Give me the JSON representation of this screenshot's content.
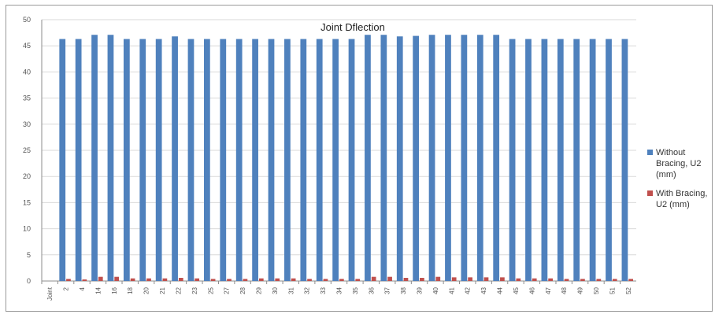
{
  "chart_data": {
    "type": "bar",
    "title": "Joint Dflection",
    "xlabel": "",
    "ylabel": "",
    "ylim": [
      0,
      50
    ],
    "yticks": [
      "0",
      "5",
      "10",
      "15",
      "20",
      "25",
      "30",
      "35",
      "40",
      "45",
      "50"
    ],
    "grid": true,
    "legend_position": "right",
    "categories": [
      "Joint",
      "2",
      "4",
      "14",
      "16",
      "18",
      "20",
      "21",
      "22",
      "23",
      "25",
      "27",
      "28",
      "29",
      "30",
      "31",
      "32",
      "33",
      "34",
      "35",
      "36",
      "37",
      "38",
      "39",
      "40",
      "41",
      "42",
      "43",
      "44",
      "45",
      "46",
      "47",
      "48",
      "49",
      "50",
      "51",
      "52"
    ],
    "series": [
      {
        "name": "Without Bracing, U2 (mm)",
        "color": "#4f81bd",
        "values": [
          0,
          46.3,
          46.3,
          47.1,
          47.1,
          46.3,
          46.3,
          46.3,
          46.8,
          46.3,
          46.3,
          46.3,
          46.3,
          46.3,
          46.3,
          46.3,
          46.3,
          46.3,
          46.3,
          46.3,
          47.1,
          47.1,
          46.8,
          46.9,
          47.1,
          47.1,
          47.1,
          47.1,
          47.1,
          46.3,
          46.3,
          46.3,
          46.3,
          46.3,
          46.3,
          46.3,
          46.3
        ]
      },
      {
        "name": "With Bracing, U2 (mm)",
        "color": "#c0504d",
        "values": [
          0,
          0.4,
          0.3,
          0.8,
          0.8,
          0.5,
          0.5,
          0.5,
          0.6,
          0.5,
          0.4,
          0.4,
          0.4,
          0.5,
          0.5,
          0.5,
          0.4,
          0.4,
          0.4,
          0.4,
          0.8,
          0.8,
          0.6,
          0.6,
          0.8,
          0.7,
          0.7,
          0.7,
          0.7,
          0.5,
          0.5,
          0.5,
          0.4,
          0.4,
          0.4,
          0.4,
          0.4
        ]
      }
    ]
  }
}
